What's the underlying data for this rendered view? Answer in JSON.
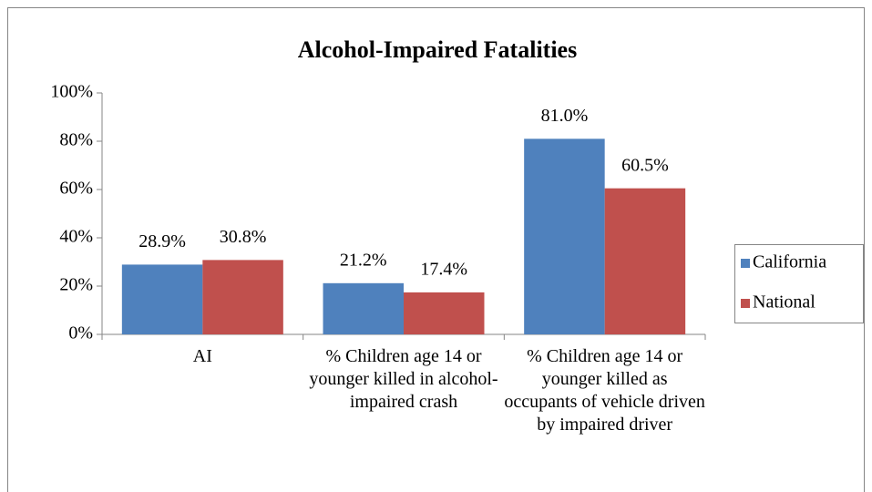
{
  "chart_data": {
    "type": "bar",
    "title": "Alcohol-Impaired Fatalities",
    "categories": [
      "AI",
      "% Children age 14 or younger killed in alcohol-impaired crash",
      "% Children age 14 or younger killed as occupants of vehicle driven by impaired driver"
    ],
    "series": [
      {
        "name": "California",
        "color": "#4f81bd",
        "values": [
          28.9,
          21.2,
          81.0
        ],
        "value_labels": [
          "28.9%",
          "21.2%",
          "81.0%"
        ]
      },
      {
        "name": "National",
        "color": "#c0504d",
        "values": [
          30.8,
          17.4,
          60.5
        ],
        "value_labels": [
          "30.8%",
          "17.4%",
          "60.5%"
        ]
      }
    ],
    "ylim": [
      0,
      100
    ],
    "yticks": [
      {
        "value": 0,
        "label": "0%"
      },
      {
        "value": 20,
        "label": "20%"
      },
      {
        "value": 40,
        "label": "40%"
      },
      {
        "value": 60,
        "label": "60%"
      },
      {
        "value": 80,
        "label": "80%"
      },
      {
        "value": 100,
        "label": "100%"
      }
    ],
    "legend": "right"
  }
}
